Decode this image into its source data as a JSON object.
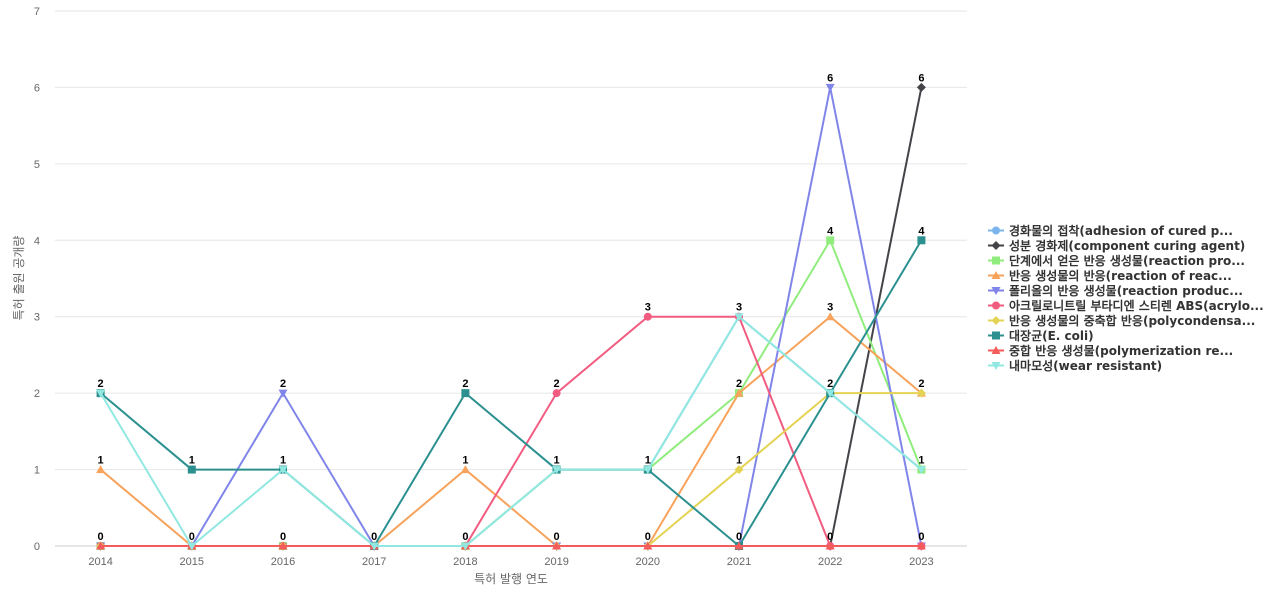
{
  "chart_data": {
    "type": "line",
    "title": "",
    "xlabel": "특허 발행 연도",
    "ylabel": "특허 출원 공개량",
    "categories": [
      "2014",
      "2015",
      "2016",
      "2017",
      "2018",
      "2019",
      "2020",
      "2021",
      "2022",
      "2023"
    ],
    "y_ticks": [
      "0",
      "1",
      "2",
      "3",
      "4",
      "5",
      "6",
      "7"
    ],
    "ylim": [
      0,
      7
    ],
    "grid": true,
    "legend_position": "right",
    "series": [
      {
        "name": "경화물의 접착(adhesion of cured p...",
        "color": "#7cb5ec",
        "marker": "circle",
        "values": [
          0,
          0,
          0,
          0,
          0,
          1,
          1,
          3,
          2,
          1
        ]
      },
      {
        "name": "성분 경화제(component curing agent)",
        "color": "#434348",
        "marker": "diamond",
        "values": [
          0,
          0,
          0,
          0,
          0,
          0,
          0,
          0,
          0,
          6
        ]
      },
      {
        "name": "단계에서 얻은 반응 생성물(reaction pro...",
        "color": "#90ed7d",
        "marker": "square",
        "values": [
          0,
          0,
          0,
          0,
          0,
          1,
          1,
          2,
          4,
          1
        ]
      },
      {
        "name": "반응 생성물의 반응(reaction of reac...",
        "color": "#f7a35c",
        "marker": "triangle",
        "values": [
          1,
          0,
          0,
          0,
          1,
          0,
          0,
          2,
          3,
          2
        ]
      },
      {
        "name": "폴리올의 반응 생성물(reaction produc...",
        "color": "#8085e9",
        "marker": "triangle-down",
        "values": [
          0,
          0,
          2,
          0,
          0,
          0,
          0,
          0,
          6,
          0
        ]
      },
      {
        "name": "아크릴로니트릴 부타디엔 스티렌 ABS(acrylo...",
        "color": "#f15c80",
        "marker": "circle",
        "values": [
          0,
          0,
          0,
          0,
          0,
          2,
          3,
          3,
          0,
          0
        ]
      },
      {
        "name": "반응 생성물의 중축합 반응(polycondensa...",
        "color": "#e4d354",
        "marker": "diamond",
        "values": [
          0,
          0,
          0,
          0,
          0,
          0,
          0,
          1,
          2,
          2
        ]
      },
      {
        "name": "대장균(E. coli)",
        "color": "#2b908f",
        "marker": "square",
        "values": [
          2,
          1,
          1,
          0,
          2,
          1,
          1,
          0,
          2,
          4
        ]
      },
      {
        "name": "중합 반응 생성물(polymerization re...",
        "color": "#f45b5b",
        "marker": "triangle",
        "values": [
          0,
          0,
          0,
          0,
          0,
          0,
          0,
          0,
          0,
          0
        ]
      },
      {
        "name": "내마모성(wear resistant)",
        "color": "#91e8e1",
        "marker": "triangle-down",
        "values": [
          2,
          0,
          1,
          0,
          0,
          1,
          1,
          3,
          2,
          1
        ]
      }
    ],
    "data_labels": [
      {
        "x": "2014",
        "value": 2,
        "text": "2"
      },
      {
        "x": "2014",
        "value": 1,
        "text": "1"
      },
      {
        "x": "2014",
        "value": 0,
        "text": "0"
      },
      {
        "x": "2015",
        "value": 1,
        "text": "1"
      },
      {
        "x": "2015",
        "value": 0,
        "text": "0"
      },
      {
        "x": "2016",
        "value": 2,
        "text": "2"
      },
      {
        "x": "2016",
        "value": 1,
        "text": "1"
      },
      {
        "x": "2016",
        "value": 0,
        "text": "0"
      },
      {
        "x": "2017",
        "value": 0,
        "text": "0"
      },
      {
        "x": "2018",
        "value": 2,
        "text": "2"
      },
      {
        "x": "2018",
        "value": 1,
        "text": "1"
      },
      {
        "x": "2018",
        "value": 0,
        "text": "0"
      },
      {
        "x": "2019",
        "value": 2,
        "text": "2"
      },
      {
        "x": "2019",
        "value": 1,
        "text": "1"
      },
      {
        "x": "2019",
        "value": 0,
        "text": "0"
      },
      {
        "x": "2020",
        "value": 3,
        "text": "3"
      },
      {
        "x": "2020",
        "value": 1,
        "text": "1"
      },
      {
        "x": "2020",
        "value": 0,
        "text": "0"
      },
      {
        "x": "2021",
        "value": 3,
        "text": "3"
      },
      {
        "x": "2021",
        "value": 2,
        "text": "2"
      },
      {
        "x": "2021",
        "value": 1,
        "text": "1"
      },
      {
        "x": "2021",
        "value": 0,
        "text": "0"
      },
      {
        "x": "2022",
        "value": 6,
        "text": "6"
      },
      {
        "x": "2022",
        "value": 4,
        "text": "4"
      },
      {
        "x": "2022",
        "value": 3,
        "text": "3"
      },
      {
        "x": "2022",
        "value": 2,
        "text": "2"
      },
      {
        "x": "2022",
        "value": 0,
        "text": "0"
      },
      {
        "x": "2023",
        "value": 6,
        "text": "6"
      },
      {
        "x": "2023",
        "value": 4,
        "text": "4"
      },
      {
        "x": "2023",
        "value": 2,
        "text": "2"
      },
      {
        "x": "2023",
        "value": 1,
        "text": "1"
      },
      {
        "x": "2023",
        "value": 0,
        "text": "0"
      }
    ]
  }
}
